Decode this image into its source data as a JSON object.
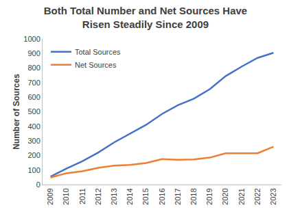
{
  "chart_data": {
    "type": "line",
    "title": "Both Total Number and Net Sources Have\nRisen Steadily Since 2009",
    "y_label": "Number of Sources",
    "categories": [
      "2009",
      "2010",
      "2011",
      "2012",
      "2013",
      "2014",
      "2015",
      "2016",
      "2017",
      "2018",
      "2019",
      "2020",
      "2021",
      "2022",
      "2023"
    ],
    "series": [
      {
        "name": "Total Sources",
        "color": "#4472c4",
        "values": [
          55,
          110,
          160,
          220,
          290,
          350,
          410,
          485,
          545,
          590,
          655,
          745,
          810,
          870,
          905
        ]
      },
      {
        "name": "Net Sources",
        "color": "#ed7d31",
        "values": [
          48,
          78,
          92,
          115,
          130,
          135,
          148,
          175,
          170,
          172,
          185,
          215,
          215,
          215,
          260
        ]
      }
    ],
    "ylim": [
      0,
      1000
    ],
    "yticks": [
      0,
      100,
      200,
      300,
      400,
      500,
      600,
      700,
      800,
      900,
      1000
    ],
    "grid": false,
    "legend": "top left"
  }
}
